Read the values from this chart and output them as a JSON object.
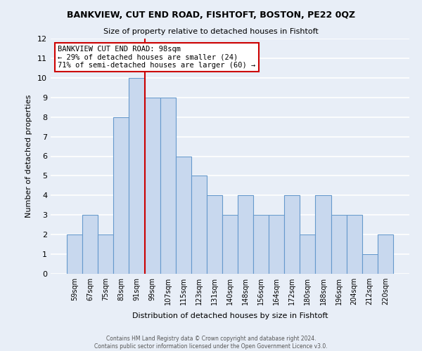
{
  "title": "BANKVIEW, CUT END ROAD, FISHTOFT, BOSTON, PE22 0QZ",
  "subtitle": "Size of property relative to detached houses in Fishtoft",
  "xlabel": "Distribution of detached houses by size in Fishtoft",
  "ylabel": "Number of detached properties",
  "bin_labels": [
    "59sqm",
    "67sqm",
    "75sqm",
    "83sqm",
    "91sqm",
    "99sqm",
    "107sqm",
    "115sqm",
    "123sqm",
    "131sqm",
    "140sqm",
    "148sqm",
    "156sqm",
    "164sqm",
    "172sqm",
    "180sqm",
    "188sqm",
    "196sqm",
    "204sqm",
    "212sqm",
    "220sqm"
  ],
  "heights": [
    2,
    3,
    2,
    8,
    10,
    9,
    9,
    6,
    5,
    4,
    3,
    4,
    3,
    3,
    4,
    2,
    4,
    3,
    3,
    1,
    2
  ],
  "bar_color": "#c8d8ee",
  "bar_edge_color": "#6699cc",
  "grid_color": "#d0d8e8",
  "bg_color": "#e8eef7",
  "vline_color": "#cc0000",
  "vline_index": 5,
  "ylim": [
    0,
    12
  ],
  "yticks": [
    0,
    1,
    2,
    3,
    4,
    5,
    6,
    7,
    8,
    9,
    10,
    11,
    12
  ],
  "annotation_title": "BANKVIEW CUT END ROAD: 98sqm",
  "annotation_line1": "← 29% of detached houses are smaller (24)",
  "annotation_line2": "71% of semi-detached houses are larger (60) →",
  "annotation_box_facecolor": "#ffffff",
  "annotation_box_edgecolor": "#cc0000",
  "footer_line1": "Contains HM Land Registry data © Crown copyright and database right 2024.",
  "footer_line2": "Contains public sector information licensed under the Open Government Licence v3.0."
}
